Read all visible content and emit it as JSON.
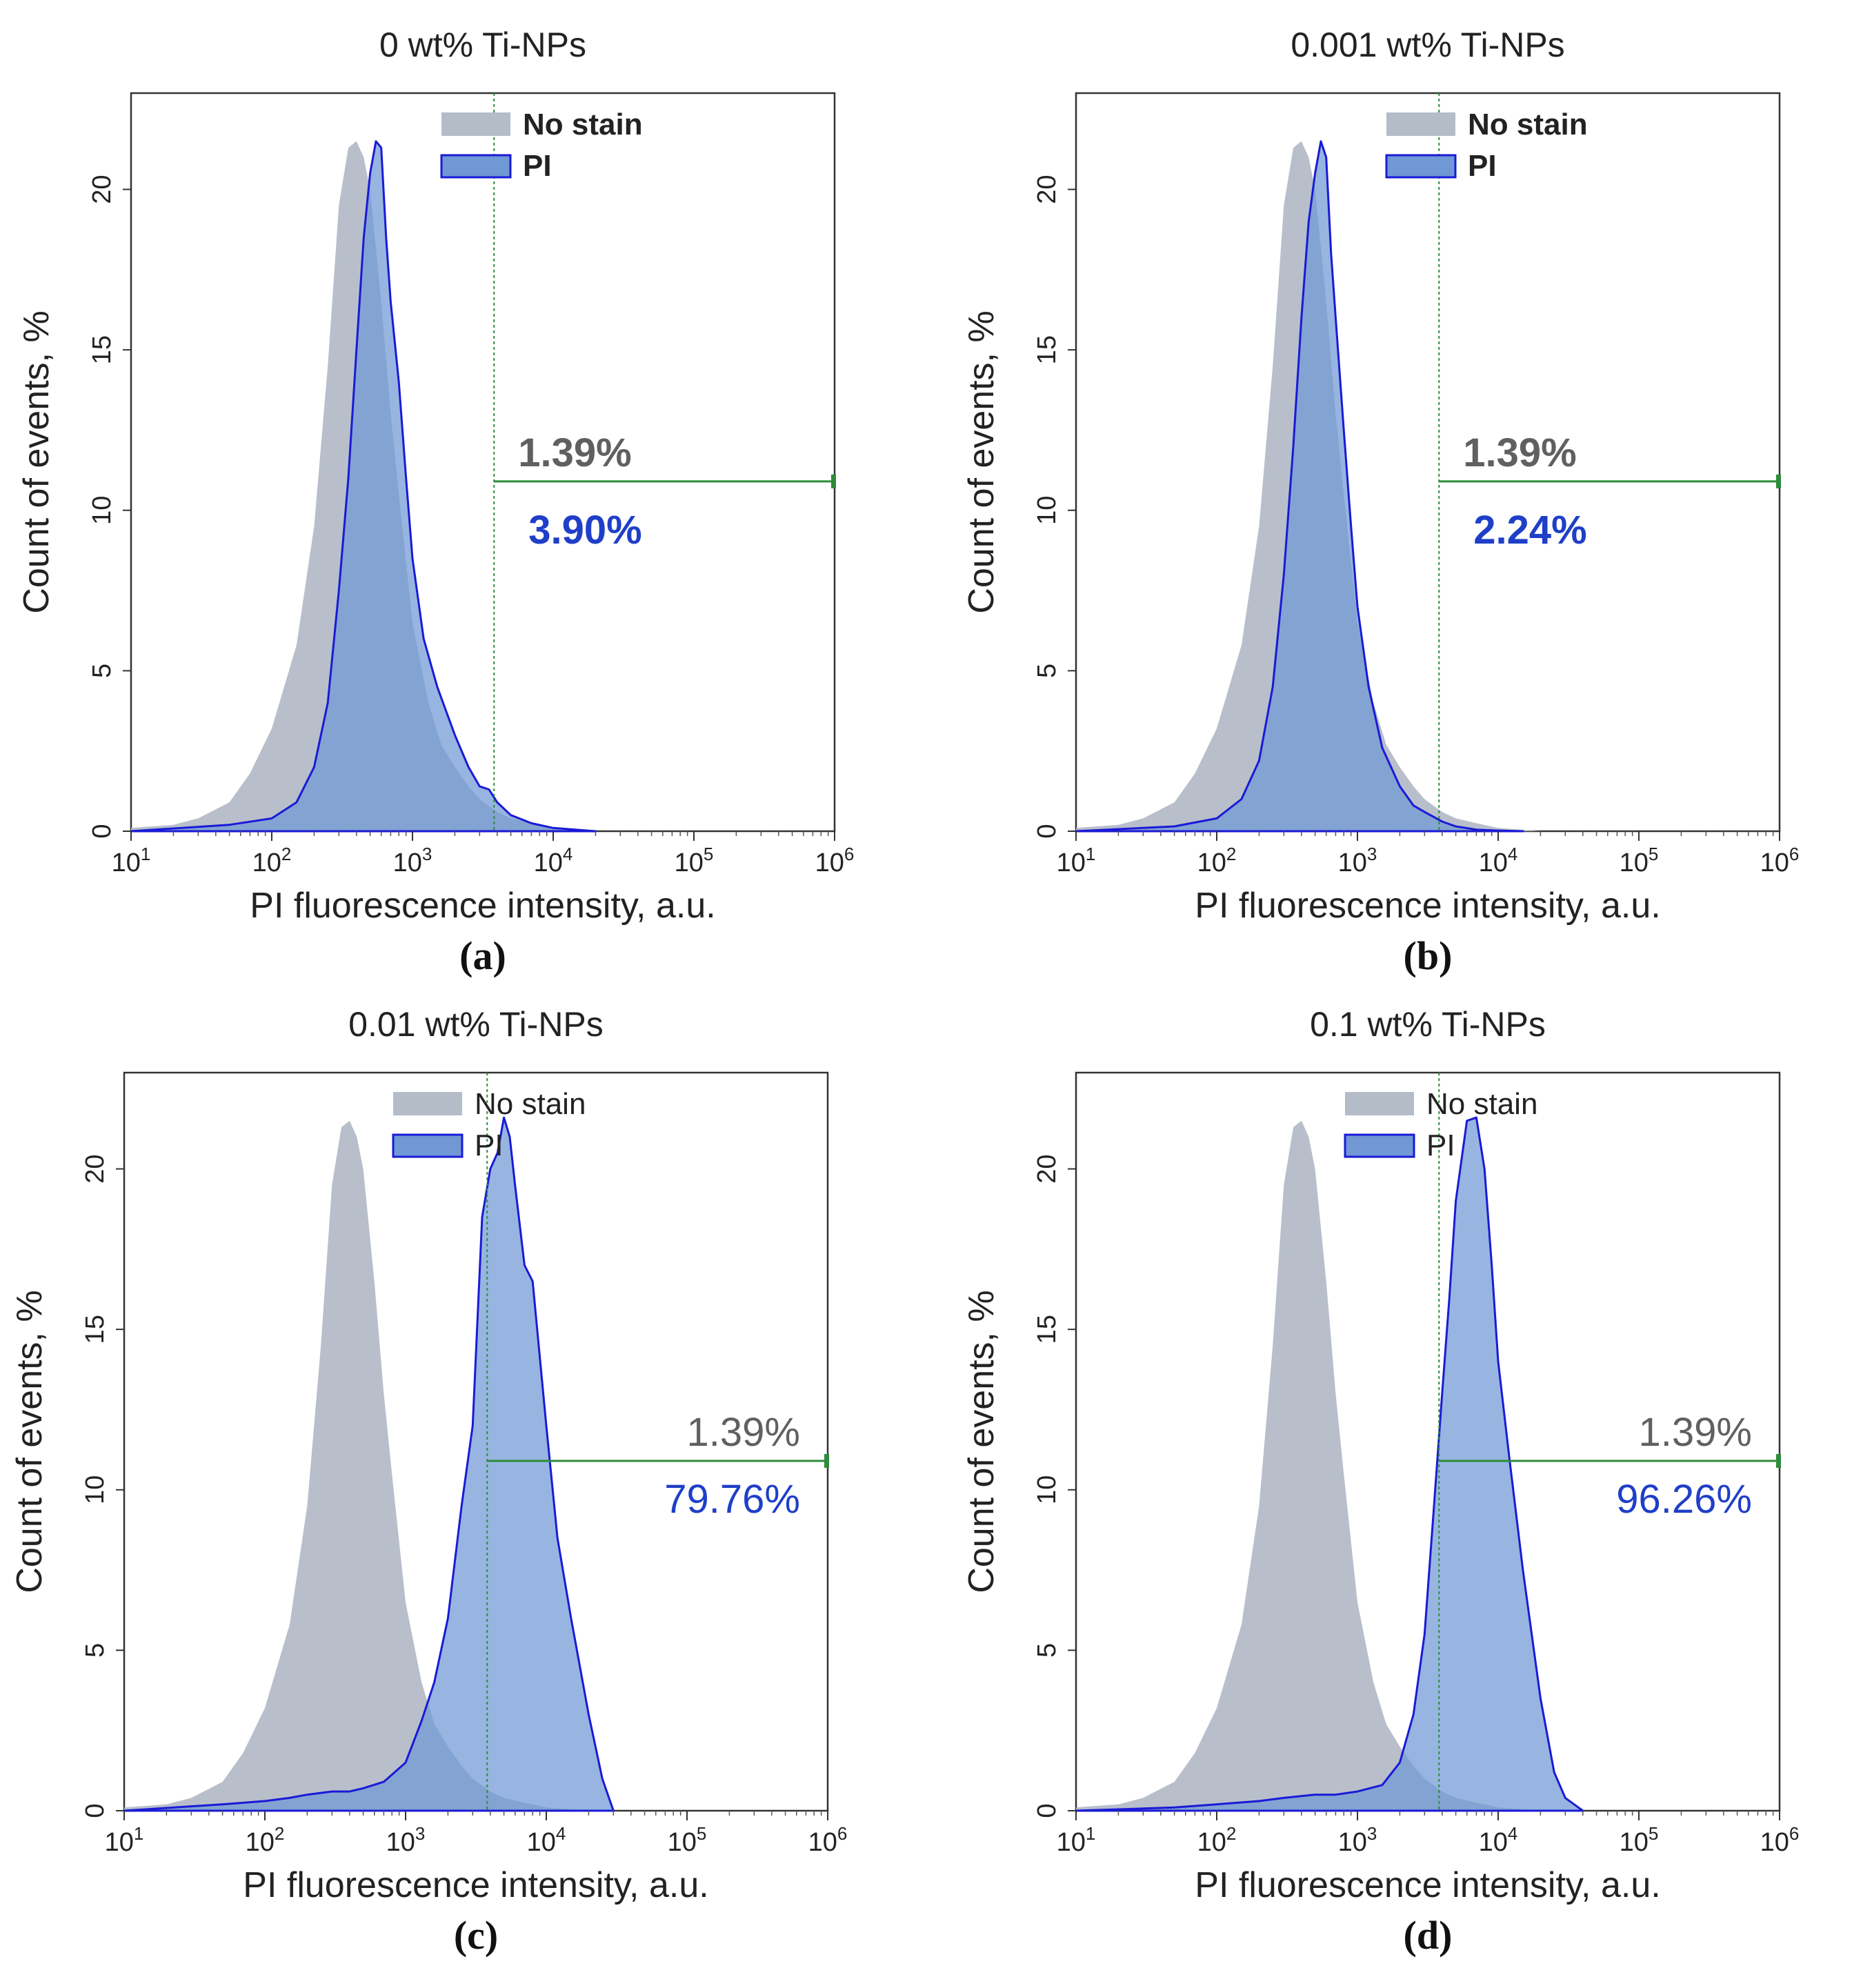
{
  "colors": {
    "nostain_fill": "#b4bcc8",
    "pi_fill": "#6f98d4",
    "pi_line": "#1a1ad6",
    "gate": "#2e8b3a",
    "pct_gray": "#606060",
    "pct_blue": "#1f3fc8"
  },
  "chart_data": [
    {
      "type": "area",
      "panel": "(a)",
      "title": "0 wt% Ti-NPs",
      "xlabel": "PI fluorescence intensity, a.u.",
      "ylabel": "Count of events, %",
      "x_scale": "log",
      "xlim": [
        10,
        1000000
      ],
      "ylim": [
        0,
        23
      ],
      "x_ticks": [
        10,
        100,
        1000,
        10000,
        100000,
        1000000
      ],
      "y_ticks": [
        0,
        5,
        10,
        15,
        20
      ],
      "legend": {
        "placement": "top-right",
        "entries": [
          "No stain",
          "PI"
        ]
      },
      "gate": {
        "x_start": 3800,
        "x_end": 1000000,
        "y_level": 10.9
      },
      "annotations": [
        "1.39%",
        "3.90%"
      ],
      "bold_labels": true,
      "series": [
        {
          "name": "No stain",
          "x": [
            10,
            20,
            30,
            50,
            70,
            100,
            150,
            200,
            250,
            300,
            350,
            400,
            450,
            500,
            600,
            700,
            800,
            1000,
            1300,
            1600,
            2000,
            2500,
            3000,
            4000,
            5000,
            7000,
            10000,
            20000
          ],
          "y": [
            0.1,
            0.2,
            0.4,
            0.9,
            1.8,
            3.2,
            5.8,
            9.5,
            14.5,
            19.5,
            21.3,
            21.5,
            21.0,
            20.0,
            16.5,
            13.0,
            10.5,
            6.5,
            4.0,
            2.7,
            2.0,
            1.4,
            1.0,
            0.6,
            0.4,
            0.25,
            0.1,
            0
          ]
        },
        {
          "name": "PI",
          "x": [
            10,
            50,
            100,
            150,
            200,
            250,
            300,
            350,
            400,
            450,
            500,
            550,
            600,
            650,
            700,
            800,
            900,
            1000,
            1200,
            1500,
            2000,
            2500,
            3000,
            3500,
            4000,
            5000,
            7000,
            10000,
            20000
          ],
          "y": [
            0,
            0.2,
            0.4,
            0.9,
            2.0,
            4.0,
            7.5,
            11.0,
            15.0,
            18.5,
            20.5,
            21.5,
            21.3,
            18.5,
            16.5,
            14.0,
            11.0,
            8.5,
            6.0,
            4.5,
            3.0,
            2.0,
            1.4,
            1.3,
            0.9,
            0.5,
            0.25,
            0.1,
            0
          ]
        }
      ]
    },
    {
      "type": "area",
      "panel": "(b)",
      "title": "0.001 wt% Ti-NPs",
      "xlabel": "PI fluorescence intensity, a.u.",
      "ylabel": "Count of events, %",
      "x_scale": "log",
      "xlim": [
        10,
        1000000
      ],
      "ylim": [
        0,
        23
      ],
      "x_ticks": [
        10,
        100,
        1000,
        10000,
        100000,
        1000000
      ],
      "y_ticks": [
        0,
        5,
        10,
        15,
        20
      ],
      "legend": {
        "placement": "top-right",
        "entries": [
          "No stain",
          "PI"
        ]
      },
      "gate": {
        "x_start": 3800,
        "x_end": 1000000,
        "y_level": 10.9
      },
      "annotations": [
        "1.39%",
        "2.24%"
      ],
      "bold_labels": true,
      "series": [
        {
          "name": "No stain",
          "x": [
            10,
            20,
            30,
            50,
            70,
            100,
            150,
            200,
            250,
            300,
            350,
            400,
            450,
            500,
            600,
            700,
            800,
            1000,
            1300,
            1600,
            2000,
            2500,
            3000,
            4000,
            5000,
            7000,
            10000,
            20000
          ],
          "y": [
            0.1,
            0.2,
            0.4,
            0.9,
            1.8,
            3.2,
            5.8,
            9.5,
            14.5,
            19.5,
            21.3,
            21.5,
            21.0,
            20.0,
            16.5,
            13.0,
            10.5,
            6.5,
            4.0,
            2.7,
            2.0,
            1.4,
            1.0,
            0.6,
            0.4,
            0.25,
            0.1,
            0
          ]
        },
        {
          "name": "PI",
          "x": [
            10,
            50,
            100,
            150,
            200,
            250,
            300,
            350,
            400,
            450,
            500,
            550,
            600,
            650,
            700,
            800,
            900,
            1000,
            1200,
            1500,
            2000,
            2500,
            3000,
            4000,
            5000,
            7000,
            10000,
            15000
          ],
          "y": [
            0,
            0.15,
            0.4,
            1.0,
            2.2,
            4.5,
            8.0,
            12.0,
            16.0,
            19.0,
            20.5,
            21.5,
            21.0,
            18.0,
            16.0,
            12.5,
            9.5,
            7.0,
            4.5,
            2.6,
            1.4,
            0.8,
            0.6,
            0.3,
            0.15,
            0.05,
            0.02,
            0
          ]
        }
      ]
    },
    {
      "type": "area",
      "panel": "(c)",
      "title": "0.01 wt% Ti-NPs",
      "xlabel": "PI fluorescence intensity, a.u.",
      "ylabel": "Count of events, %",
      "x_scale": "log",
      "xlim": [
        10,
        1000000
      ],
      "ylim": [
        0,
        23
      ],
      "x_ticks": [
        10,
        100,
        1000,
        10000,
        100000,
        1000000
      ],
      "y_ticks": [
        0,
        5,
        10,
        15,
        20
      ],
      "legend": {
        "placement": "top-right",
        "entries": [
          "No stain",
          "PI"
        ]
      },
      "gate": {
        "x_start": 3800,
        "x_end": 1000000,
        "y_level": 10.9
      },
      "annotations": [
        "1.39%",
        "79.76%"
      ],
      "bold_labels": false,
      "series": [
        {
          "name": "No stain",
          "x": [
            10,
            20,
            30,
            50,
            70,
            100,
            150,
            200,
            250,
            300,
            350,
            400,
            450,
            500,
            600,
            700,
            800,
            1000,
            1300,
            1600,
            2000,
            2500,
            3000,
            4000,
            5000,
            7000,
            10000,
            20000
          ],
          "y": [
            0.1,
            0.2,
            0.4,
            0.9,
            1.8,
            3.2,
            5.8,
            9.5,
            14.5,
            19.5,
            21.3,
            21.5,
            21.0,
            20.0,
            16.5,
            13.0,
            10.5,
            6.5,
            4.0,
            2.7,
            2.0,
            1.4,
            1.0,
            0.6,
            0.4,
            0.25,
            0.1,
            0
          ]
        },
        {
          "name": "PI",
          "x": [
            10,
            50,
            100,
            150,
            200,
            300,
            400,
            500,
            700,
            1000,
            1300,
            1600,
            2000,
            2500,
            3000,
            3500,
            4000,
            4500,
            5000,
            5500,
            6000,
            7000,
            8000,
            10000,
            12000,
            15000,
            20000,
            25000,
            30000
          ],
          "y": [
            0,
            0.2,
            0.3,
            0.4,
            0.5,
            0.6,
            0.6,
            0.7,
            0.9,
            1.5,
            2.8,
            4.0,
            6.0,
            9.5,
            12.0,
            18.5,
            20.0,
            20.5,
            21.6,
            21.0,
            19.5,
            17.0,
            16.5,
            12.0,
            8.5,
            6.0,
            3.0,
            1.0,
            0
          ]
        }
      ]
    },
    {
      "type": "area",
      "panel": "(d)",
      "title": "0.1 wt% Ti-NPs",
      "xlabel": "PI fluorescence intensity, a.u.",
      "ylabel": "Count of events, %",
      "x_scale": "log",
      "xlim": [
        10,
        1000000
      ],
      "ylim": [
        0,
        23
      ],
      "x_ticks": [
        10,
        100,
        1000,
        10000,
        100000,
        1000000
      ],
      "y_ticks": [
        0,
        5,
        10,
        15,
        20
      ],
      "legend": {
        "placement": "top-right",
        "entries": [
          "No stain",
          "PI"
        ]
      },
      "gate": {
        "x_start": 3800,
        "x_end": 1000000,
        "y_level": 10.9
      },
      "annotations": [
        "1.39%",
        "96.26%"
      ],
      "bold_labels": false,
      "series": [
        {
          "name": "No stain",
          "x": [
            10,
            20,
            30,
            50,
            70,
            100,
            150,
            200,
            250,
            300,
            350,
            400,
            450,
            500,
            600,
            700,
            800,
            1000,
            1300,
            1600,
            2000,
            2500,
            3000,
            4000,
            5000,
            7000,
            10000,
            20000
          ],
          "y": [
            0.1,
            0.2,
            0.4,
            0.9,
            1.8,
            3.2,
            5.8,
            9.5,
            14.5,
            19.5,
            21.3,
            21.5,
            21.0,
            20.0,
            16.5,
            13.0,
            10.5,
            6.5,
            4.0,
            2.7,
            2.0,
            1.4,
            1.0,
            0.6,
            0.4,
            0.25,
            0.1,
            0
          ]
        },
        {
          "name": "PI",
          "x": [
            10,
            50,
            100,
            200,
            300,
            500,
            700,
            1000,
            1500,
            2000,
            2500,
            3000,
            3500,
            4000,
            4500,
            5000,
            6000,
            7000,
            8000,
            9000,
            10000,
            12000,
            15000,
            20000,
            25000,
            30000,
            40000
          ],
          "y": [
            0,
            0.1,
            0.2,
            0.3,
            0.4,
            0.5,
            0.5,
            0.6,
            0.8,
            1.5,
            3.0,
            5.5,
            9.5,
            13.0,
            16.0,
            19.0,
            21.5,
            21.6,
            20.0,
            17.0,
            14.0,
            11.0,
            7.5,
            3.5,
            1.2,
            0.4,
            0
          ]
        }
      ]
    }
  ]
}
